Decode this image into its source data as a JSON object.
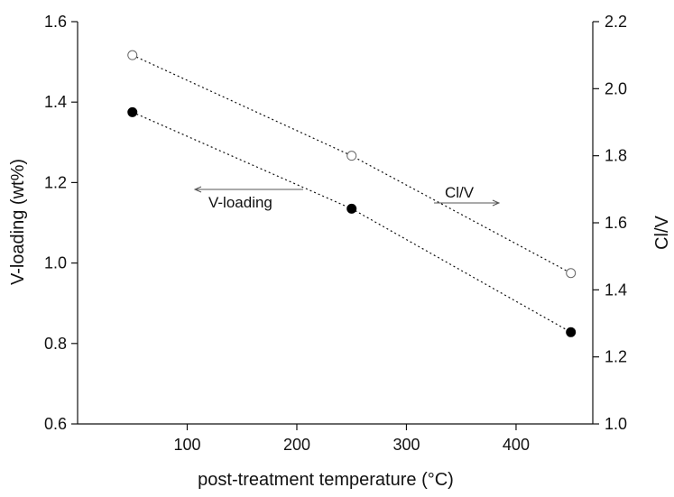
{
  "chart_data": {
    "type": "scatter",
    "x_axis": {
      "label": "post-treatment temperature (°C)",
      "range": [
        0,
        470
      ],
      "ticks": [
        100,
        200,
        300,
        400
      ]
    },
    "y_left": {
      "label": "V-loading (wt%)",
      "range": [
        0.6,
        1.6
      ],
      "ticks": [
        "0.6",
        "0.8",
        "1.0",
        "1.2",
        "1.4",
        "1.6"
      ]
    },
    "y_right": {
      "label": "Cl/V",
      "range": [
        1.0,
        2.2
      ],
      "ticks": [
        "1.0",
        "1.2",
        "1.4",
        "1.6",
        "1.8",
        "2.0",
        "2.2"
      ]
    },
    "series": [
      {
        "name": "V-loading",
        "axis": "left",
        "marker": "filled-circle",
        "x": [
          50,
          250,
          450
        ],
        "y": [
          1.375,
          1.135,
          0.828
        ]
      },
      {
        "name": "Cl/V",
        "axis": "right",
        "marker": "open-circle",
        "x": [
          50,
          250,
          450
        ],
        "y": [
          2.1,
          1.8,
          1.45
        ]
      }
    ],
    "annotations": [
      {
        "text": "V-loading",
        "arrow": "left"
      },
      {
        "text": "Cl/V",
        "arrow": "right"
      }
    ],
    "grid": false
  }
}
